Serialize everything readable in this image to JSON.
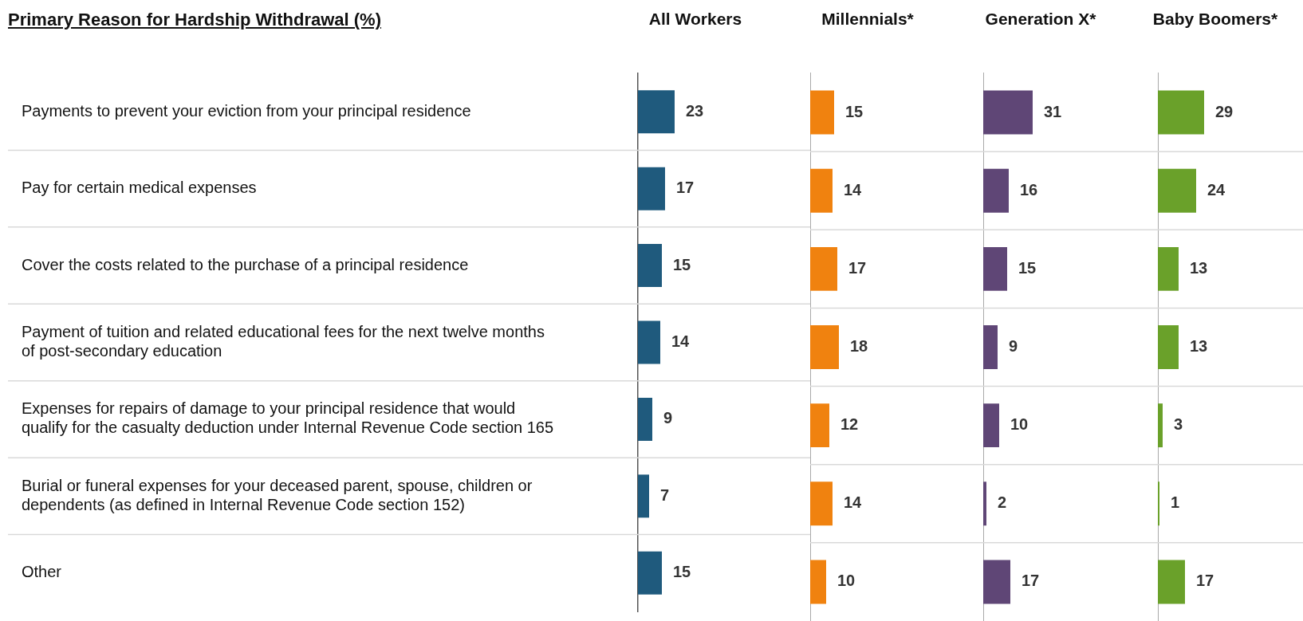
{
  "chart_data": [
    {
      "type": "bar",
      "orientation": "horizontal",
      "title": "All Workers",
      "ylabel": "Primary Reason for Hardship Withdrawal (%)",
      "categories": [
        "Payments to prevent your eviction from your principal residence",
        "Pay for certain medical expenses",
        "Cover the costs related to the purchase of a principal residence",
        "Payment of tuition and related educational fees for the next twelve months of post-secondary education",
        "Expenses for repairs of damage to your principal residence that would qualify for the casualty deduction under Internal Revenue Code section 165",
        "Burial or funeral expenses for your deceased parent, spouse, children or dependents (as defined in Internal Revenue Code section 152)",
        "Other"
      ],
      "values": [
        23,
        17,
        15,
        14,
        9,
        7,
        15
      ],
      "color": "#1f5a7d",
      "data_labels": true,
      "grid": "y",
      "tick_labels": "y",
      "legend": false
    },
    {
      "type": "bar",
      "orientation": "horizontal",
      "title": "Millennials*",
      "values": [
        15,
        14,
        17,
        18,
        12,
        14,
        10
      ],
      "color": "#f0820f",
      "data_labels": true,
      "grid": "y",
      "tick_labels": false,
      "legend": false
    },
    {
      "type": "bar",
      "orientation": "horizontal",
      "title": "Generation X*",
      "values": [
        31,
        16,
        15,
        9,
        10,
        2,
        17
      ],
      "color": "#5f4676",
      "data_labels": true,
      "grid": "y",
      "tick_labels": false,
      "legend": false
    },
    {
      "type": "bar",
      "orientation": "horizontal",
      "title": "Baby Boomers*",
      "values": [
        29,
        24,
        13,
        13,
        3,
        1,
        17
      ],
      "color": "#6aa12a",
      "data_labels": true,
      "grid": "y",
      "tick_labels": false,
      "legend": false
    }
  ]
}
